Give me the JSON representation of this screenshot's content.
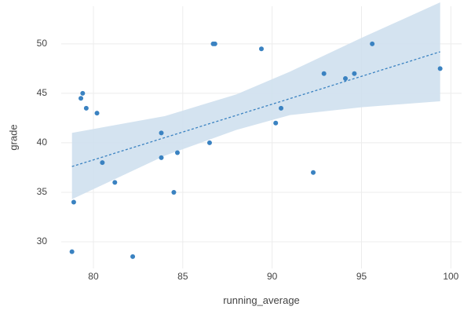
{
  "chart_data": {
    "type": "scatter",
    "title": "",
    "xlabel": "running_average",
    "ylabel": "grade",
    "xlim": [
      78.2,
      100.6
    ],
    "ylim": [
      27.3,
      53.8
    ],
    "xticks": [
      80,
      85,
      90,
      95,
      100
    ],
    "yticks": [
      30,
      35,
      40,
      45,
      50
    ],
    "grid": true,
    "points": [
      {
        "x": 78.8,
        "y": 29.0
      },
      {
        "x": 78.9,
        "y": 34.0
      },
      {
        "x": 79.3,
        "y": 44.5
      },
      {
        "x": 79.4,
        "y": 45.0
      },
      {
        "x": 79.6,
        "y": 43.5
      },
      {
        "x": 80.2,
        "y": 43.0
      },
      {
        "x": 80.5,
        "y": 38.0
      },
      {
        "x": 81.2,
        "y": 36.0
      },
      {
        "x": 82.2,
        "y": 28.5
      },
      {
        "x": 83.8,
        "y": 41.0
      },
      {
        "x": 83.8,
        "y": 38.5
      },
      {
        "x": 84.5,
        "y": 35.0
      },
      {
        "x": 84.7,
        "y": 39.0
      },
      {
        "x": 86.5,
        "y": 40.0
      },
      {
        "x": 86.7,
        "y": 50.0
      },
      {
        "x": 86.8,
        "y": 50.0
      },
      {
        "x": 89.4,
        "y": 49.5
      },
      {
        "x": 90.2,
        "y": 42.0
      },
      {
        "x": 90.5,
        "y": 43.5
      },
      {
        "x": 92.3,
        "y": 37.0
      },
      {
        "x": 92.9,
        "y": 47.0
      },
      {
        "x": 94.1,
        "y": 46.5
      },
      {
        "x": 94.6,
        "y": 47.0
      },
      {
        "x": 95.6,
        "y": 50.0
      },
      {
        "x": 99.4,
        "y": 47.5
      }
    ],
    "regression": {
      "x_start": 78.8,
      "y_start": 37.6,
      "x_end": 99.4,
      "y_end": 49.2,
      "style": "dashed"
    },
    "confidence_band": {
      "x": [
        78.8,
        84.0,
        88.0,
        91.0,
        95.0,
        99.4
      ],
      "lower": [
        34.3,
        38.7,
        41.3,
        42.8,
        43.6,
        44.2
      ],
      "upper": [
        41.0,
        42.7,
        44.9,
        47.2,
        50.6,
        54.2
      ]
    },
    "colors": {
      "point": "#3a82c1",
      "line": "#3a82c1",
      "band": "#cfe0ee"
    }
  }
}
